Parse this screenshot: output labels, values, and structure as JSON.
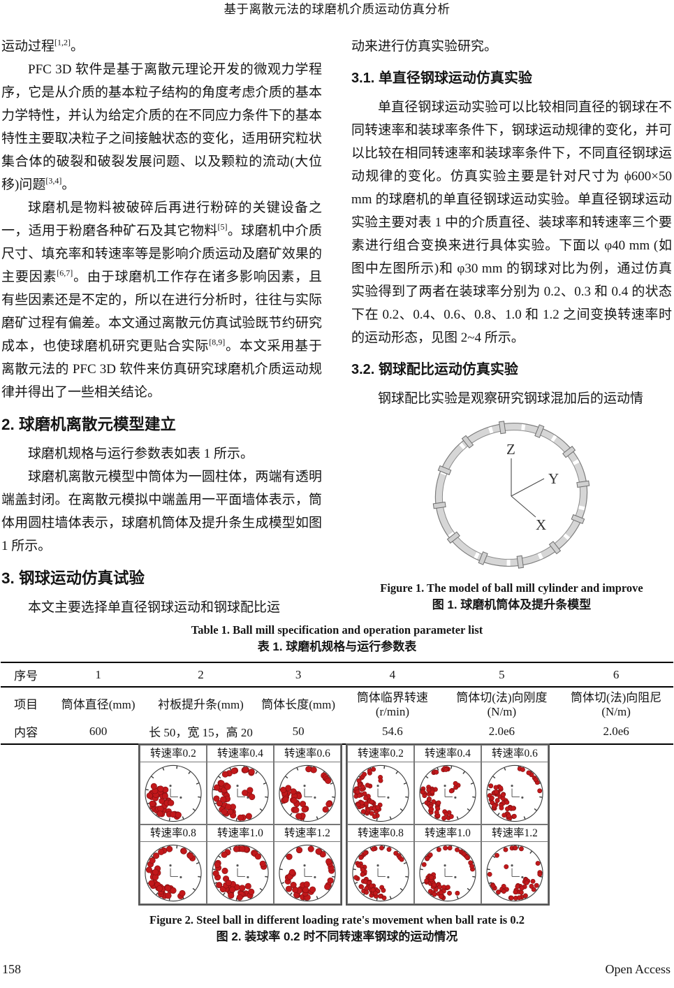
{
  "header": {
    "title": "基于离散元法的球磨机介质运动仿真分析"
  },
  "footer": {
    "page_number": "158",
    "open_access": "Open Access"
  },
  "left_column": {
    "blocks": [
      {
        "type": "p",
        "noindent": true,
        "runs": [
          {
            "t": "运动过程"
          },
          {
            "sup": "[1,2]"
          },
          {
            "t": "。"
          }
        ]
      },
      {
        "type": "p",
        "runs": [
          {
            "t": "PFC 3D 软件是基于离散元理论开发的微观力学程序，它是从介质的基本粒子结构的角度考虑介质的基本力学特性，并认为给定介质的在不同应力条件下的基本特性主要取决粒子之间接触状态的变化，适用研究粒状集合体的破裂和破裂发展问题、以及颗粒的流动(大位移)问题"
          },
          {
            "sup": "[3,4]"
          },
          {
            "t": "。"
          }
        ]
      },
      {
        "type": "p",
        "runs": [
          {
            "t": "球磨机是物料被破碎后再进行粉碎的关键设备之一，适用于粉磨各种矿石及其它物料"
          },
          {
            "sup": "[5]"
          },
          {
            "t": "。球磨机中介质尺寸、填充率和转速率等是影响介质运动及磨矿效果的主要因素"
          },
          {
            "sup": "[6,7]"
          },
          {
            "t": "。由于球磨机工作存在诸多影响因素，且有些因素还是不定的，所以在进行分析时，往往与实际磨矿过程有偏差。本文通过离散元仿真试验既节约研究成本，也使球磨机研究更贴合实际"
          },
          {
            "sup": "[8,9]"
          },
          {
            "t": "。本文采用基于离散元法的 PFC 3D 软件来仿真研究球磨机介质运动规律并得出了一些相关结论。"
          }
        ]
      },
      {
        "type": "h1",
        "text": "2. 球磨机离散元模型建立"
      },
      {
        "type": "p",
        "runs": [
          {
            "t": "球磨机规格与运行参数表如表 1 所示。"
          }
        ]
      },
      {
        "type": "p",
        "runs": [
          {
            "t": "球磨机离散元模型中筒体为一圆柱体，两端有透明端盖封闭。在离散元模拟中端盖用一平面墙体表示，筒体用圆柱墙体表示，球磨机筒体及提升条生成模型如图 1 所示。"
          }
        ]
      },
      {
        "type": "h1",
        "text": "3. 钢球运动仿真试验"
      },
      {
        "type": "p",
        "runs": [
          {
            "t": "本文主要选择单直径钢球运动和钢球配比运"
          }
        ]
      }
    ]
  },
  "right_column": {
    "blocks": [
      {
        "type": "p",
        "noindent": true,
        "runs": [
          {
            "t": "动来进行仿真实验研究。"
          }
        ]
      },
      {
        "type": "h2",
        "text": "3.1. 单直径钢球运动仿真实验"
      },
      {
        "type": "p",
        "runs": [
          {
            "t": "单直径钢球运动实验可以比较相同直径的钢球在不同转速率和装球率条件下，钢球运动规律的变化，并可以比较在相同转速率和装球率条件下，不同直径钢球运动规律的变化。仿真实验主要是针对尺寸为 ϕ600×50 mm 的球磨机的单直径钢球运动实验。单直径钢球运动实验主要对表 1 中的介质直径、装球率和转速率三个要素进行组合变换来进行具体实验。下面以 φ40 mm (如图中左图所示)和 φ30 mm 的钢球对比为例，通过仿真实验得到了两者在装球率分别为 0.2、0.3 和 0.4 的状态下在 0.2、0.4、0.6、0.8、1.0 和 1.2 之间变换转速率时的运动形态，见图 2~4 所示。"
          }
        ]
      },
      {
        "type": "h2",
        "text": "3.2. 钢球配比运动仿真实验"
      },
      {
        "type": "p",
        "runs": [
          {
            "t": "钢球配比实验是观察研究钢球混加后的运动情"
          }
        ]
      }
    ]
  },
  "figure1": {
    "axis_labels": {
      "z": "Z",
      "y": "Y",
      "x": "X"
    },
    "caption_en": "Figure 1. The model of ball mill cylinder and improve",
    "caption_zh": "图 1. 球磨机筒体及提升条模型"
  },
  "table1": {
    "caption_en": "Table 1. Ball mill specification and operation parameter list",
    "caption_zh": "表 1. 球磨机规格与运行参数表",
    "rows": [
      {
        "label": "序号",
        "cells": [
          "1",
          "2",
          "3",
          "4",
          "5",
          "6"
        ]
      },
      {
        "label": "项目",
        "cells": [
          "筒体直径(mm)",
          "衬板提升条(mm)",
          "筒体长度(mm)",
          "筒体临界转速(r/min)",
          "筒体切(法)向刚度(N/m)",
          "筒体切(法)向阻尼(N/m)"
        ]
      },
      {
        "label": "内容",
        "cells": [
          "600",
          "长 50，宽 15，高 20",
          "50",
          "54.6",
          "2.0e6",
          "2.0e6"
        ]
      }
    ]
  },
  "figure2": {
    "caption_en": "Figure 2. Steel ball in different loading rate's movement when ball rate is 0.2",
    "caption_zh": "图 2.  装球率 0.2 时不同转速率钢球的运动情况",
    "dot_color": "#c2181b",
    "dot_edge": "#7d0f10",
    "grids": [
      {
        "name": "phi40-ball",
        "dot_radius": 4.3,
        "panels": [
          {
            "label": "转速率0.2",
            "groups": [
              [
                95,
                205,
                0.3,
                0.92,
                40
              ],
              [
                75,
                95,
                0.72,
                0.94,
                5
              ]
            ]
          },
          {
            "label": "转速率0.4",
            "groups": [
              [
                95,
                215,
                0.45,
                0.94,
                26
              ],
              [
                225,
                305,
                0.8,
                0.95,
                9
              ],
              [
                340,
                380,
                0.15,
                0.45,
                4
              ],
              [
                60,
                95,
                0.8,
                0.94,
                3
              ]
            ]
          },
          {
            "label": "转速率0.6",
            "groups": [
              [
                95,
                200,
                0.3,
                0.92,
                28
              ],
              [
                255,
                335,
                0.82,
                0.95,
                8
              ],
              [
                20,
                60,
                0.65,
                0.9,
                3
              ]
            ]
          },
          {
            "label": "转速率0.8",
            "groups": [
              [
                60,
                205,
                0.55,
                0.94,
                30
              ],
              [
                245,
                325,
                0.86,
                0.95,
                7
              ],
              [
                205,
                245,
                0.88,
                0.94,
                3
              ]
            ]
          },
          {
            "label": "转速率1.0",
            "groups": [
              [
                55,
                195,
                0.45,
                0.94,
                28
              ],
              [
                230,
                355,
                0.88,
                0.95,
                12
              ],
              [
                195,
                230,
                0.9,
                0.95,
                3
              ]
            ]
          },
          {
            "label": "转速率1.2",
            "groups": [
              [
                0,
                360,
                0.88,
                0.95,
                20
              ],
              [
                70,
                185,
                0.4,
                0.8,
                16
              ]
            ]
          }
        ]
      },
      {
        "name": "phi30-ball",
        "dot_radius": 3.2,
        "panels": [
          {
            "label": "转速率0.2",
            "groups": [
              [
                90,
                215,
                0.4,
                0.95,
                52
              ],
              [
                215,
                255,
                0.8,
                0.94,
                6
              ],
              [
                250,
                270,
                0.45,
                0.6,
                2
              ]
            ]
          },
          {
            "label": "转速率0.4",
            "groups": [
              [
                80,
                205,
                0.45,
                0.95,
                44
              ],
              [
                235,
                280,
                0.85,
                0.95,
                8
              ],
              [
                300,
                345,
                0.15,
                0.5,
                5
              ]
            ]
          },
          {
            "label": "转速率0.6",
            "groups": [
              [
                90,
                205,
                0.4,
                0.95,
                46
              ],
              [
                280,
                355,
                0.86,
                0.95,
                10
              ]
            ]
          },
          {
            "label": "转速率0.8",
            "groups": [
              [
                80,
                205,
                0.5,
                0.95,
                42
              ],
              [
                245,
                330,
                0.88,
                0.95,
                9
              ],
              [
                205,
                245,
                0.9,
                0.95,
                5
              ]
            ]
          },
          {
            "label": "转速率1.0",
            "groups": [
              [
                60,
                190,
                0.5,
                0.95,
                38
              ],
              [
                230,
                360,
                0.9,
                0.96,
                14
              ],
              [
                190,
                230,
                0.92,
                0.96,
                5
              ]
            ]
          },
          {
            "label": "转速率1.2",
            "groups": [
              [
                0,
                360,
                0.9,
                0.96,
                24
              ],
              [
                20,
                130,
                0.4,
                0.82,
                22
              ],
              [
                200,
                220,
                0.3,
                0.4,
                1
              ]
            ]
          }
        ]
      }
    ]
  }
}
